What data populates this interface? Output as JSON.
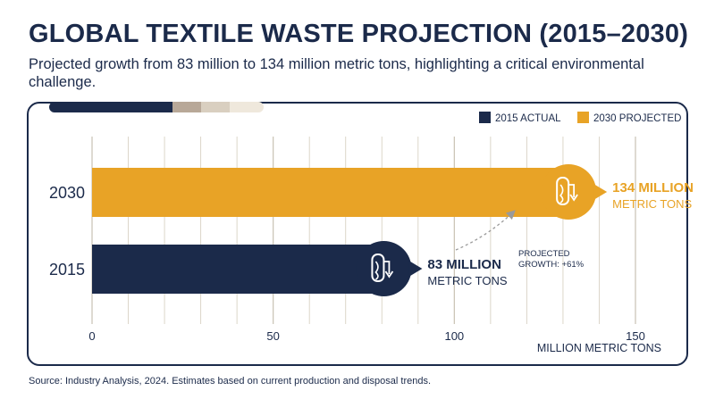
{
  "title": "GLOBAL TEXTILE WASTE PROJECTION (2015–2030)",
  "subtitle": "Projected growth from 83 million to 134 million metric tons, highlighting a critical environmental challenge.",
  "source": "Source: Industry Analysis, 2024. Estimates based on current production and disposal trends.",
  "colors": {
    "navy": "#1b2a4a",
    "gold": "#e8a326",
    "grid": "#d8d2c4"
  },
  "decor_band_colors": [
    "#1b2a4a",
    "#b8a898",
    "#d9cfc0",
    "#efe8dc"
  ],
  "chart_data": {
    "type": "bar",
    "orientation": "horizontal",
    "categories": [
      "2030",
      "2015"
    ],
    "series": [
      {
        "name": "2015 ACTUAL",
        "color": "#1b2a4a",
        "values": [
          null,
          83
        ]
      },
      {
        "name": "2030 PROJECTED",
        "color": "#e8a326",
        "values": [
          134,
          null
        ]
      }
    ],
    "xlabel": "MILLION METRIC TONS",
    "xlim": [
      0,
      150
    ],
    "xticks": [
      0,
      50,
      100,
      150
    ],
    "grid": true,
    "legend_position": "top-right",
    "data_labels": [
      {
        "category": "2030",
        "value_text": "134 MILLION",
        "unit_text": "METRIC TONS",
        "icon": "textile-roll-icon"
      },
      {
        "category": "2015",
        "value_text": "83 MILLION",
        "unit_text": "METRIC TONS",
        "icon": "textile-roll-icon"
      }
    ],
    "annotation": {
      "line1": "PROJECTED",
      "line2": "GROWTH: +61%"
    }
  }
}
